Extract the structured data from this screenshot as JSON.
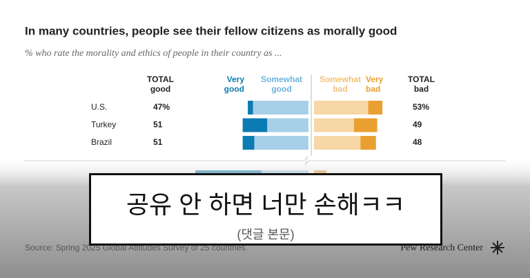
{
  "chart_data": {
    "type": "diverging-bar",
    "title": "In many countries, people see their fellow citizens as morally good",
    "subtitle": "% who rate the morality and ethics of people in their country as ...",
    "categories": [
      "U.S.",
      "Turkey",
      "Brazil"
    ],
    "series": [
      {
        "name": "Very good",
        "color": "#0c7bb3",
        "side": "left",
        "values": [
          4,
          19,
          9
        ]
      },
      {
        "name": "Somewhat good",
        "color": "#a7cfe8",
        "side": "left",
        "values": [
          43,
          32,
          42
        ]
      },
      {
        "name": "Somewhat bad",
        "color": "#f7d7a6",
        "side": "right",
        "values": [
          42,
          31,
          36
        ]
      },
      {
        "name": "Very bad",
        "color": "#e9a030",
        "side": "right",
        "values": [
          11,
          18,
          12
        ]
      }
    ],
    "totals": [
      {
        "name": "TOTAL good",
        "values": [
          47,
          51,
          51
        ],
        "value_labels": [
          "47%",
          "51",
          "51"
        ]
      },
      {
        "name": "TOTAL bad",
        "values": [
          53,
          49,
          48
        ],
        "value_labels": [
          "53%",
          "49",
          "48"
        ]
      }
    ],
    "source": "Source: Spring 2025 Global Attitudes Survey of 25 countries.",
    "logo": "Pew Research Center"
  },
  "overlay": {
    "caption": "공유 안 하면 너만 손해ㅋㅋ",
    "subcaption": "(댓글 본문)"
  }
}
